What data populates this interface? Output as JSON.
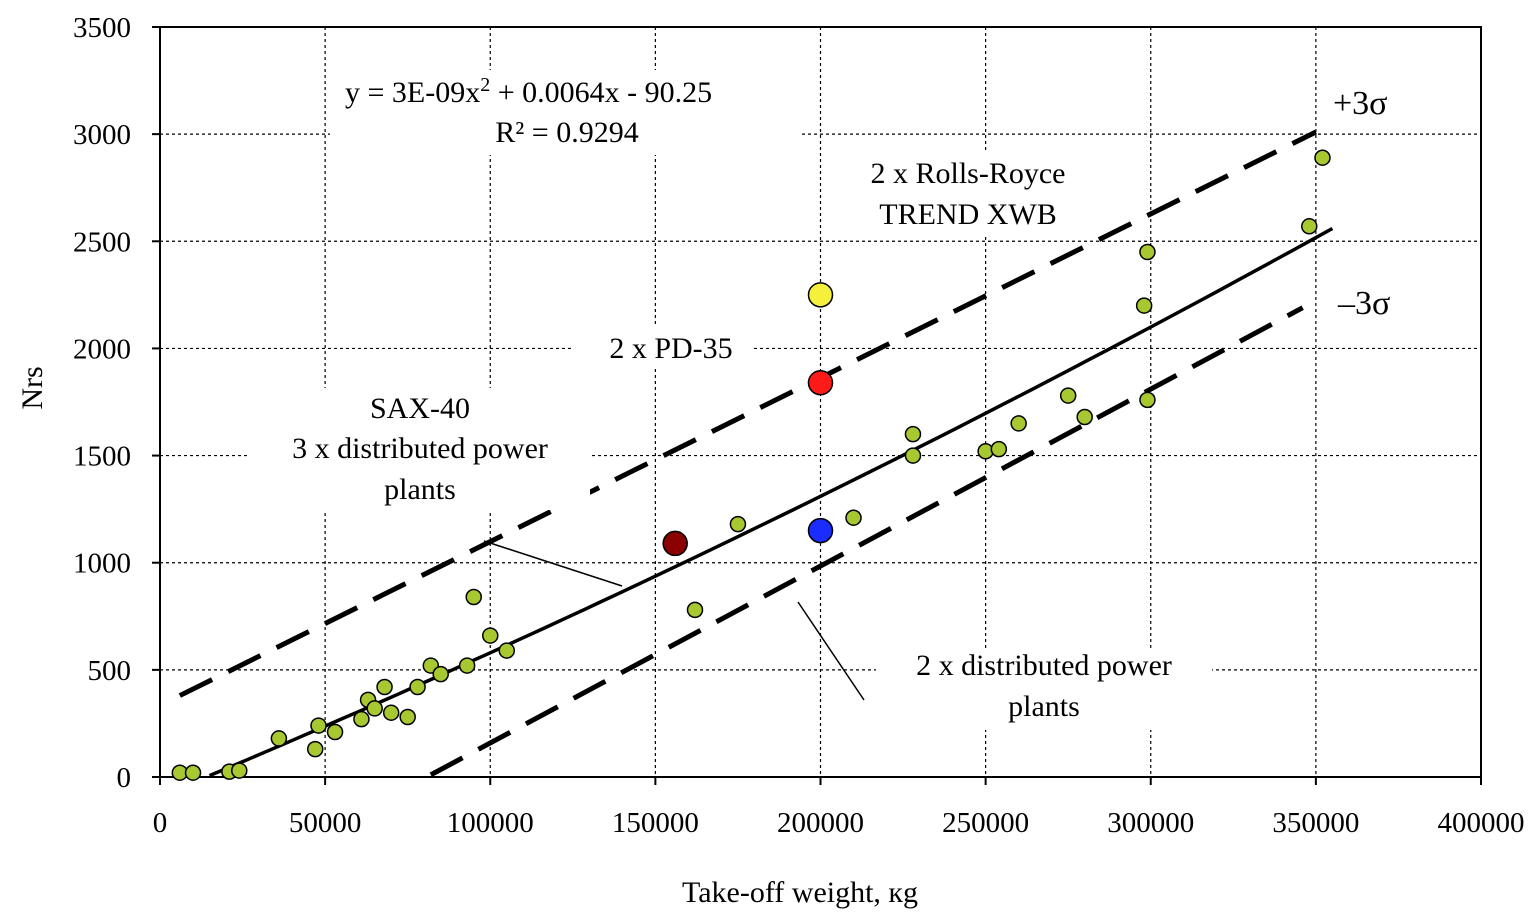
{
  "chart_data": {
    "type": "scatter",
    "title": "",
    "xlabel": "Take-off weight, кg",
    "ylabel": "Nrs",
    "xlim": [
      0,
      400000
    ],
    "ylim": [
      0,
      3500
    ],
    "xticks": [
      "0",
      "50000",
      "100000",
      "150000",
      "200000",
      "250000",
      "300000",
      "350000",
      "400000"
    ],
    "yticks": [
      "0",
      "500",
      "1000",
      "1500",
      "2000",
      "2500",
      "3000",
      "3500"
    ],
    "grid": true,
    "series": [
      {
        "color": "#a8c832",
        "x": [
          6000,
          10000,
          21000,
          24000,
          36000,
          47000,
          48000,
          53000,
          61000,
          63000,
          65000,
          68000,
          70000,
          75000,
          78000,
          82000,
          85000,
          93000,
          95000,
          100000,
          105000,
          162000,
          175000,
          210000,
          228000,
          228000,
          250000,
          254000,
          260000,
          275000,
          280000,
          298000,
          299000,
          299000,
          348000,
          352000
        ],
        "y": [
          20,
          20,
          25,
          30,
          180,
          130,
          240,
          210,
          270,
          360,
          320,
          420,
          300,
          280,
          420,
          520,
          480,
          520,
          840,
          660,
          590,
          780,
          1180,
          1210,
          1600,
          1500,
          1520,
          1530,
          1650,
          1780,
          1680,
          2200,
          2450,
          1760,
          2570,
          2890
        ]
      },
      {
        "color": "#f5f03c",
        "x": [
          200000
        ],
        "y": [
          2250
        ]
      },
      {
        "color": "#ff1a1a",
        "x": [
          200000
        ],
        "y": [
          1840
        ]
      },
      {
        "color": "#8b0000",
        "x": [
          156000
        ],
        "y": [
          1090
        ]
      },
      {
        "color": "#1a2cff",
        "x": [
          200000
        ],
        "y": [
          1150
        ]
      }
    ],
    "trend_line": {
      "type": "polynomial",
      "a": 3e-09,
      "b": 0.0064,
      "c": -90.25,
      "x_range": [
        15000,
        355000
      ]
    },
    "upper_band": {
      "label": "+3σ",
      "x": [
        6000,
        350000
      ],
      "y": [
        380,
        3010
      ]
    },
    "lower_band": {
      "label": "–3σ",
      "x": [
        82000,
        346000
      ],
      "y": [
        10,
        2190
      ]
    },
    "annotations": {
      "equation_line1": "y = 3E-09x",
      "equation_sup": "2",
      "equation_line2": " + 0.0064x - 90.25",
      "r_squared": "R² = 0.9294",
      "rolls_royce_line1": "2 x Rolls-Royce",
      "rolls_royce_line2": "TREND XWB",
      "pd35": "2 x PD-35",
      "sax_line1": "SAX-40",
      "sax_line2": "3 x distributed power",
      "sax_line3": "plants",
      "distributed_line1": "2 x distributed power",
      "distributed_line2": "plants"
    }
  }
}
